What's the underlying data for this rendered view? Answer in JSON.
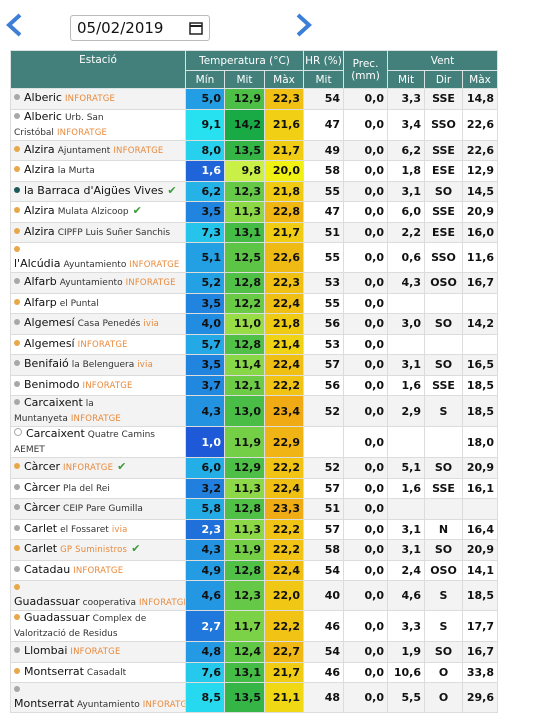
{
  "header": {
    "date": "05/02/2019"
  },
  "table": {
    "headers": [
      "Estació",
      "Temperatura (°C)",
      "HR (%)",
      "Prec. (mm)",
      "Vent"
    ],
    "subheaders": [
      "Mín",
      "Mit",
      "Màx",
      "Mit",
      "Mit",
      "Dir",
      "Màx"
    ],
    "rows": [
      {
        "dot": "gray",
        "name": "Alberic",
        "tag": "INFORATGE",
        "cells": [
          "5,0",
          "12,9",
          "22,3",
          "54",
          "0,0",
          "3,3",
          "SSE",
          "14,8"
        ]
      },
      {
        "dot": "gray",
        "name": "Alberic",
        "detail": "Urb. San Cristóbal",
        "tag": "INFORATGE",
        "cells": [
          "9,1",
          "14,2",
          "21,6",
          "47",
          "0,0",
          "3,4",
          "SSO",
          "22,6"
        ]
      },
      {
        "dot": "orange",
        "name": "Alzira",
        "detail": "Ajuntament",
        "tag": "INFORATGE",
        "cells": [
          "8,0",
          "13,5",
          "21,7",
          "49",
          "0,0",
          "6,2",
          "SSE",
          "22,6"
        ]
      },
      {
        "dot": "orange",
        "name": "Alzira",
        "detail": "la Murta",
        "cells": [
          "1,6",
          "9,8",
          "20,0",
          "58",
          "0,0",
          "1,8",
          "ESE",
          "12,9"
        ]
      },
      {
        "dot": "teal",
        "name": "la Barraca d'Aigües Vives",
        "check": true,
        "cells": [
          "6,2",
          "12,3",
          "21,8",
          "55",
          "0,0",
          "3,1",
          "SO",
          "14,5"
        ]
      },
      {
        "dot": "orange",
        "name": "Alzira",
        "detail": "Mulata Alzicoop",
        "check": true,
        "cells": [
          "3,5",
          "11,3",
          "22,8",
          "47",
          "0,0",
          "6,0",
          "SSE",
          "20,9"
        ]
      },
      {
        "dot": "orange",
        "name": "Alzira",
        "detail": "CIPFP Luis Suñer Sanchis",
        "cells": [
          "7,3",
          "13,1",
          "21,7",
          "51",
          "0,0",
          "2,2",
          "ESE",
          "16,0"
        ]
      },
      {
        "dot": "orange",
        "name": "l'Alcúdia",
        "detail": "Ayuntamiento",
        "tag": "INFORATGE",
        "cells": [
          "5,1",
          "12,5",
          "22,6",
          "55",
          "0,0",
          "0,6",
          "SSO",
          "11,6"
        ]
      },
      {
        "dot": "gray",
        "name": "Alfarb",
        "detail": "Ayuntamiento",
        "tag": "INFORATGE",
        "cells": [
          "5,2",
          "12,8",
          "22,3",
          "53",
          "0,0",
          "4,3",
          "OSO",
          "16,7"
        ]
      },
      {
        "dot": "orange",
        "name": "Alfarp",
        "detail": "el Puntal",
        "cells": [
          "3,5",
          "12,2",
          "22,4",
          "55",
          "0,0",
          null,
          null,
          null
        ]
      },
      {
        "dot": "gray",
        "name": "Algemesí",
        "detail": "Casa Penedés",
        "tag": "ivia",
        "cells": [
          "4,0",
          "11,0",
          "21,8",
          "56",
          "0,0",
          "3,0",
          "SO",
          "14,2"
        ]
      },
      {
        "dot": "orange",
        "name": "Algemesí",
        "tag": "INFORATGE",
        "cells": [
          "5,7",
          "12,8",
          "21,4",
          "53",
          "0,0",
          null,
          null,
          null
        ]
      },
      {
        "dot": "gray",
        "name": "Benifaió",
        "detail": "la Belenguera",
        "tag": "ivia",
        "cells": [
          "3,5",
          "11,4",
          "22,4",
          "57",
          "0,0",
          "3,1",
          "SO",
          "16,5"
        ]
      },
      {
        "dot": "gray",
        "name": "Benimodo",
        "tag": "INFORATGE",
        "cells": [
          "3,7",
          "12,1",
          "22,2",
          "56",
          "0,0",
          "1,6",
          "SSE",
          "18,5"
        ]
      },
      {
        "dot": "gray",
        "name": "Carcaixent",
        "detail": "la Muntanyeta",
        "tag": "INFORATGE",
        "cells": [
          "4,3",
          "13,0",
          "23,4",
          "52",
          "0,0",
          "2,9",
          "S",
          "18,5"
        ]
      },
      {
        "dot": "open",
        "name": "Carcaixent",
        "detail": "Quatre Camins AEMET",
        "cells": [
          "1,0",
          "11,9",
          "22,9",
          null,
          "0,0",
          null,
          null,
          "18,0"
        ]
      },
      {
        "dot": "orange",
        "name": "Càrcer",
        "tag": "INFORATGE",
        "check": true,
        "cells": [
          "6,0",
          "12,9",
          "22,2",
          "52",
          "0,0",
          "5,1",
          "SO",
          "20,9"
        ]
      },
      {
        "dot": "gray",
        "name": "Càrcer",
        "detail": "Pla del Rei",
        "cells": [
          "3,2",
          "11,3",
          "22,4",
          "57",
          "0,0",
          "1,6",
          "SSE",
          "16,1"
        ]
      },
      {
        "dot": "gray",
        "name": "Càrcer",
        "detail": "CEIP Pare Gumilla",
        "cells": [
          "5,8",
          "12,8",
          "23,3",
          "51",
          "0,0",
          null,
          null,
          null
        ]
      },
      {
        "dot": "gray",
        "name": "Carlet",
        "detail": "el Fossaret",
        "tag": "ivia",
        "cells": [
          "2,3",
          "11,3",
          "22,2",
          "57",
          "0,0",
          "3,1",
          "N",
          "16,4"
        ]
      },
      {
        "dot": "orange",
        "name": "Carlet",
        "tag": "GP Suministros",
        "check": true,
        "cells": [
          "4,3",
          "11,9",
          "22,2",
          "58",
          "0,0",
          "3,1",
          "SO",
          "20,9"
        ]
      },
      {
        "dot": "gray",
        "name": "Catadau",
        "tag": "INFORATGE",
        "cells": [
          "4,9",
          "12,8",
          "22,4",
          "54",
          "0,0",
          "2,4",
          "OSO",
          "14,1"
        ]
      },
      {
        "dot": "orange",
        "name": "Guadassuar",
        "detail": "cooperativa",
        "tag": "INFORATGE",
        "cells": [
          "4,6",
          "12,3",
          "22,0",
          "40",
          "0,0",
          "4,6",
          "S",
          "18,5"
        ]
      },
      {
        "dot": "orange",
        "name": "Guadassuar",
        "detail": "Complex de Valorització de Residus",
        "cells": [
          "2,7",
          "11,7",
          "22,2",
          "46",
          "0,0",
          "3,3",
          "S",
          "17,7"
        ]
      },
      {
        "dot": "gray",
        "name": "Llombai",
        "tag": "INFORATGE",
        "cells": [
          "4,8",
          "12,4",
          "22,7",
          "54",
          "0,0",
          "1,9",
          "SO",
          "16,7"
        ]
      },
      {
        "dot": "orange",
        "name": "Montserrat",
        "detail": "Casadalt",
        "cells": [
          "7,6",
          "13,1",
          "21,7",
          "46",
          "0,0",
          "10,6",
          "O",
          "33,8"
        ]
      },
      {
        "dot": "gray",
        "name": "Montserrat",
        "detail": "Ayuntamiento",
        "tag": "INFORATGE",
        "cells": [
          "8,5",
          "13,5",
          "21,1",
          "48",
          "0,0",
          "5,5",
          "O",
          "29,6"
        ]
      }
    ]
  }
}
